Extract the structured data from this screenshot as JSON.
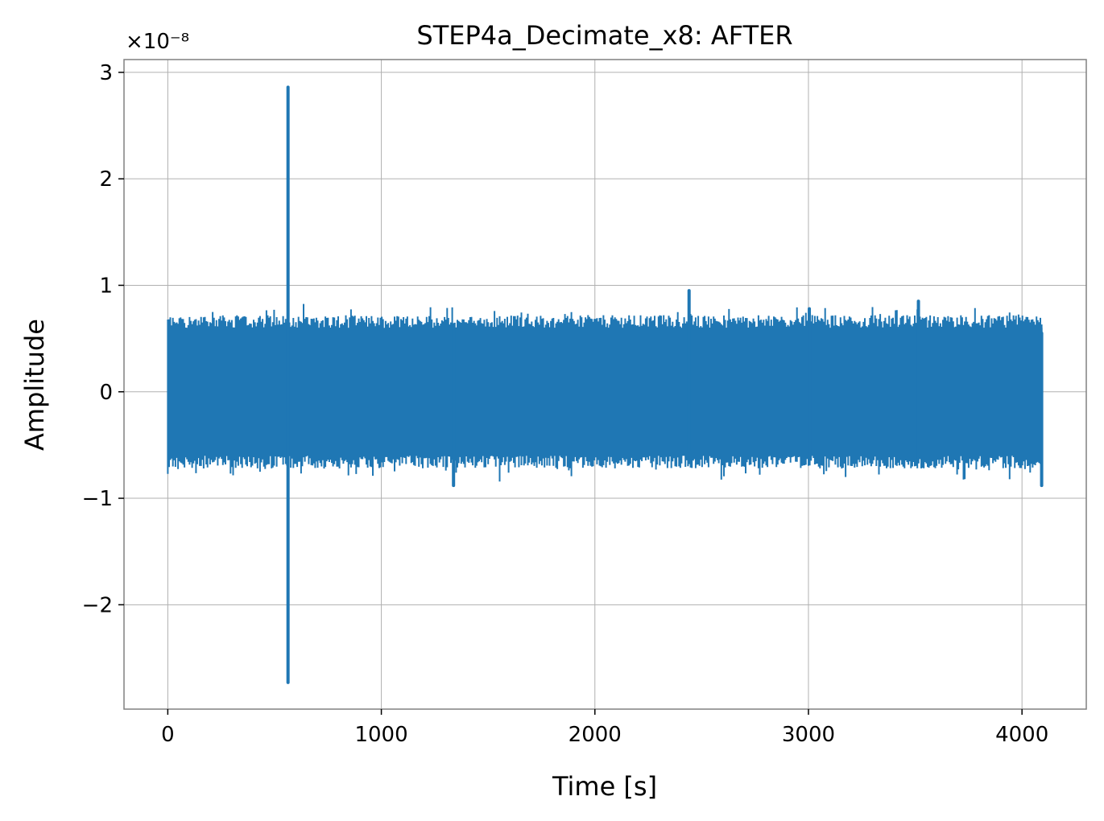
{
  "chart_data": {
    "type": "line",
    "title": "STEP4a_Decimate_x8: AFTER",
    "xlabel": "Time [s]",
    "ylabel": "Amplitude",
    "y_offset_label": "×10⁻⁸",
    "y_scale_factor": 1e-08,
    "xlim": [
      -205,
      4301
    ],
    "ylim": [
      -2.98,
      3.12
    ],
    "x_ticks": [
      0,
      1000,
      2000,
      3000,
      4000
    ],
    "x_tick_labels": [
      "0",
      "1000",
      "2000",
      "3000",
      "4000"
    ],
    "y_ticks": [
      -2,
      -1,
      0,
      1,
      2,
      3
    ],
    "y_tick_labels": [
      "−2",
      "−1",
      "0",
      "1",
      "2",
      "3"
    ],
    "grid": true,
    "series": [
      {
        "color": "#1f77b4",
        "description_of_signal": "dense noise band approx ±0.65e-8 from 0 to 4096 s",
        "noise_band": {
          "x_start": 0,
          "x_end": 4096,
          "lower": -0.6,
          "upper": 0.6
        },
        "peaks": [
          {
            "x": 563,
            "y_min": -2.73,
            "y_max": 2.86
          },
          {
            "x": 2441,
            "y_min": -0.55,
            "y_max": 0.95
          },
          {
            "x": 1338,
            "y_min": -0.88,
            "y_max": 0.62
          },
          {
            "x": 4092,
            "y_min": -0.88,
            "y_max": 0.55
          },
          {
            "x": 3004,
            "y_min": -0.6,
            "y_max": 0.78
          },
          {
            "x": 3515,
            "y_min": -0.62,
            "y_max": 0.85
          }
        ]
      }
    ]
  }
}
